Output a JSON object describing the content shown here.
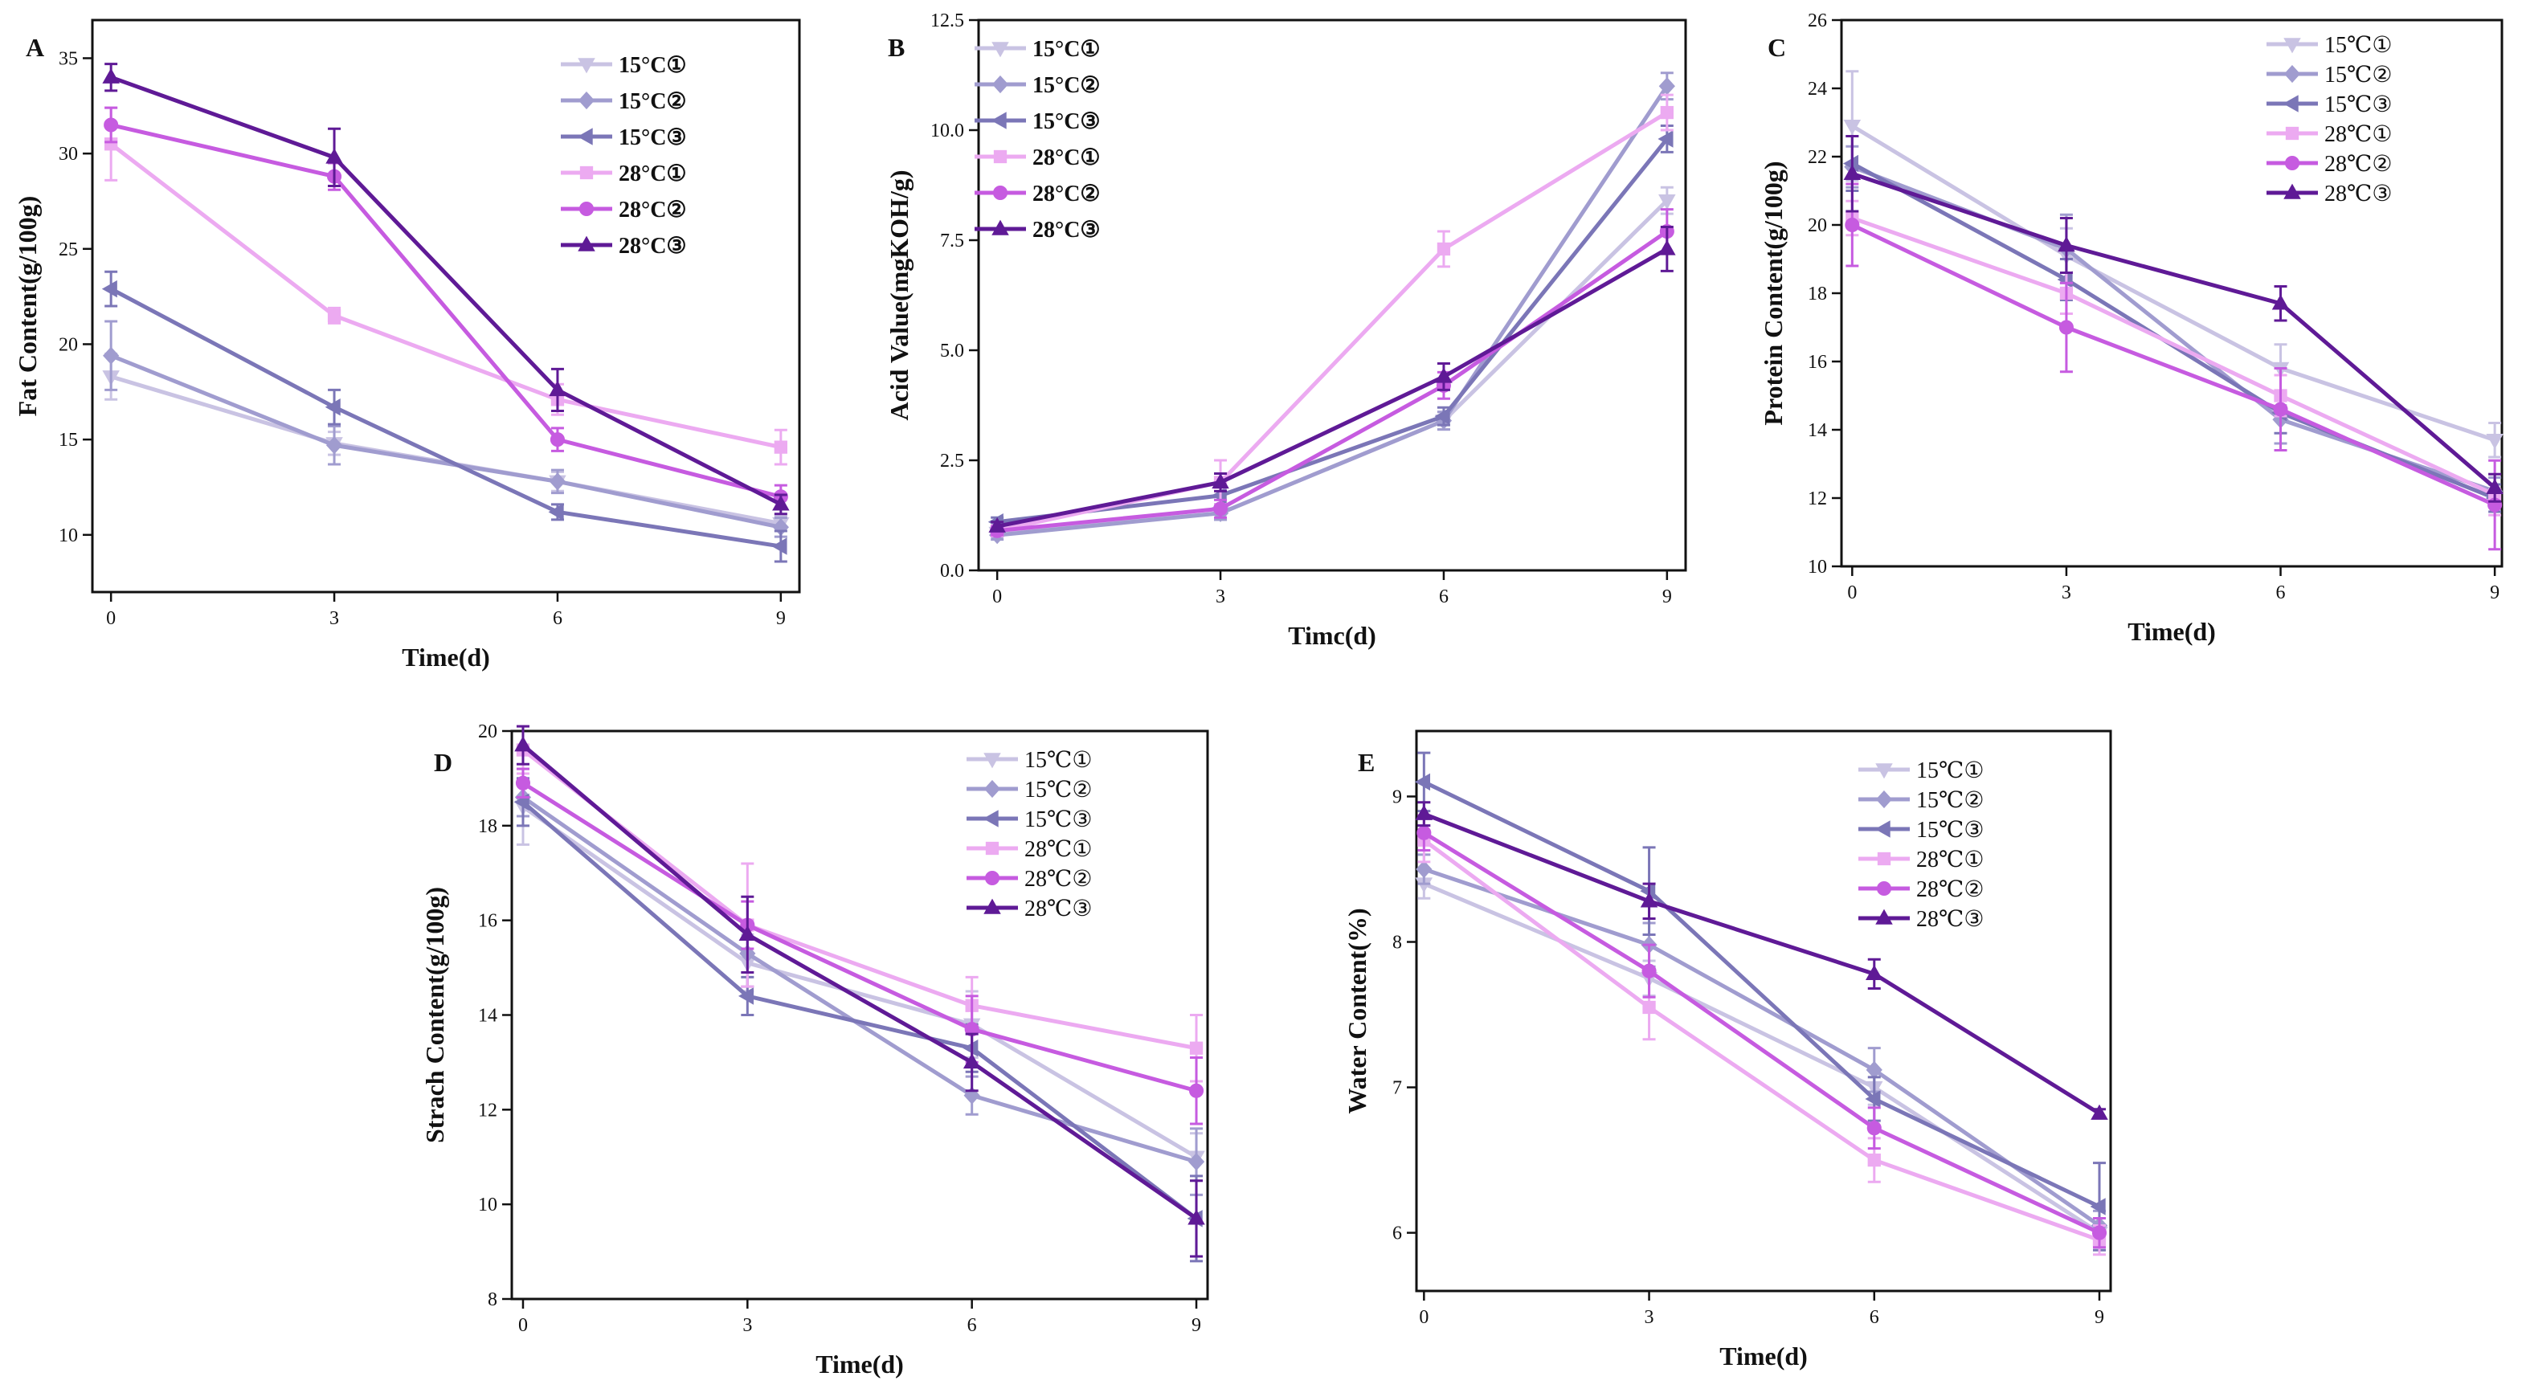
{
  "figure": {
    "colors": {
      "15°C①": "#c9c3e3",
      "15°C②": "#a09ccf",
      "15°C③": "#7b76b7",
      "28°C①": "#ecaaf1",
      "28°C②": "#c65be0",
      "28°C③": "#5f1a96"
    }
  },
  "chart_data": [
    {
      "id": "A",
      "panel_label": "A",
      "type": "line",
      "xlabel": "Time(d)",
      "ylabel": "Fat Content(g/100g)",
      "x": [
        0,
        3,
        6,
        9
      ],
      "xticks": [
        "0",
        "3",
        "6",
        "9"
      ],
      "xlim": [
        -0.25,
        9.25
      ],
      "ylim": [
        7,
        37
      ],
      "yticks": [
        "10",
        "15",
        "20",
        "25",
        "30",
        "35"
      ],
      "ytick_values": [
        10,
        15,
        20,
        25,
        30,
        35
      ],
      "legend_position": "top-right",
      "legend_bold": true,
      "series": [
        {
          "name": "15°C①",
          "marker": "triangle-down",
          "values": [
            18.3,
            14.8,
            12.8,
            10.6
          ],
          "errors": [
            1.2,
            0.6,
            0.5,
            0.4
          ]
        },
        {
          "name": "15°C②",
          "marker": "diamond",
          "values": [
            19.4,
            14.7,
            12.8,
            10.4
          ],
          "errors": [
            1.8,
            1.0,
            0.6,
            0.5
          ]
        },
        {
          "name": "15°C③",
          "marker": "triangle-left",
          "values": [
            22.9,
            16.7,
            11.2,
            9.4
          ],
          "errors": [
            0.9,
            0.9,
            0.4,
            0.8
          ]
        },
        {
          "name": "28°C①",
          "marker": "square",
          "values": [
            30.5,
            21.5,
            17.1,
            14.6
          ],
          "errors": [
            1.9,
            0.4,
            0.8,
            0.9
          ]
        },
        {
          "name": "28°C②",
          "marker": "circle",
          "values": [
            31.5,
            28.8,
            15.0,
            12.0
          ],
          "errors": [
            0.9,
            0.7,
            0.6,
            0.6
          ]
        },
        {
          "name": "28°C③",
          "marker": "triangle-up",
          "values": [
            34.0,
            29.8,
            17.6,
            11.6
          ],
          "errors": [
            0.7,
            1.5,
            1.1,
            0.5
          ]
        }
      ]
    },
    {
      "id": "B",
      "panel_label": "B",
      "type": "line",
      "xlabel": "Timc(d)",
      "ylabel": "Acid Value(mgKOH/g)",
      "x": [
        0,
        3,
        6,
        9
      ],
      "xticks": [
        "0",
        "3",
        "6",
        "9"
      ],
      "xlim": [
        -0.25,
        9.25
      ],
      "ylim": [
        0,
        12.5
      ],
      "yticks": [
        "0.0",
        "2.5",
        "5.0",
        "7.5",
        "10.0",
        "12.5"
      ],
      "ytick_values": [
        0,
        2.5,
        5,
        7.5,
        10,
        12.5
      ],
      "legend_position": "top-left",
      "legend_bold": true,
      "series": [
        {
          "name": "15°C①",
          "marker": "triangle-down",
          "values": [
            0.85,
            1.3,
            3.4,
            8.4
          ],
          "errors": [
            0.1,
            0.15,
            0.2,
            0.3
          ]
        },
        {
          "name": "15°C②",
          "marker": "diamond",
          "values": [
            0.8,
            1.3,
            3.4,
            11.0
          ],
          "errors": [
            0.1,
            0.15,
            0.2,
            0.3
          ]
        },
        {
          "name": "15°C③",
          "marker": "triangle-left",
          "values": [
            1.1,
            1.7,
            3.5,
            9.8
          ],
          "errors": [
            0.1,
            0.2,
            0.2,
            0.3
          ]
        },
        {
          "name": "28°C①",
          "marker": "square",
          "values": [
            0.9,
            2.0,
            7.3,
            10.4
          ],
          "errors": [
            0.1,
            0.5,
            0.4,
            0.4
          ]
        },
        {
          "name": "28°C②",
          "marker": "circle",
          "values": [
            0.9,
            1.4,
            4.2,
            7.7
          ],
          "errors": [
            0.1,
            0.2,
            0.3,
            0.5
          ]
        },
        {
          "name": "28°C③",
          "marker": "triangle-up",
          "values": [
            1.0,
            2.0,
            4.4,
            7.3
          ],
          "errors": [
            0.1,
            0.2,
            0.3,
            0.5
          ]
        }
      ]
    },
    {
      "id": "C",
      "panel_label": "C",
      "type": "line",
      "xlabel": "Time(d)",
      "ylabel": "Protein Content(g/100g)",
      "x": [
        0,
        3,
        6,
        9
      ],
      "xticks": [
        "0",
        "3",
        "6",
        "9"
      ],
      "xlim": [
        -0.15,
        9.1
      ],
      "ylim": [
        10,
        26
      ],
      "yticks": [
        "10",
        "12",
        "14",
        "16",
        "18",
        "20",
        "22",
        "24",
        "26"
      ],
      "ytick_values": [
        10,
        12,
        14,
        16,
        18,
        20,
        22,
        24,
        26
      ],
      "legend_position": "top-right",
      "legend_bold": false,
      "series": [
        {
          "name": "15℃①",
          "marker": "triangle-down",
          "values": [
            22.9,
            19.1,
            15.8,
            13.7
          ],
          "errors": [
            1.6,
            0.8,
            0.7,
            0.5
          ]
        },
        {
          "name": "15℃②",
          "marker": "diamond",
          "values": [
            21.7,
            19.3,
            14.3,
            12.2
          ],
          "errors": [
            0.6,
            1.0,
            0.7,
            0.4
          ]
        },
        {
          "name": "15℃③",
          "marker": "triangle-left",
          "values": [
            21.8,
            18.4,
            14.5,
            12.0
          ],
          "errors": [
            0.8,
            0.6,
            0.6,
            0.4
          ]
        },
        {
          "name": "28℃①",
          "marker": "square",
          "values": [
            20.2,
            18.0,
            15.0,
            12.1
          ],
          "errors": [
            0.5,
            0.6,
            0.6,
            0.6
          ]
        },
        {
          "name": "28℃②",
          "marker": "circle",
          "values": [
            20.0,
            17.0,
            14.6,
            11.8
          ],
          "errors": [
            1.2,
            1.3,
            1.2,
            1.3
          ]
        },
        {
          "name": "28℃③",
          "marker": "triangle-up",
          "values": [
            21.5,
            19.4,
            17.7,
            12.3
          ],
          "errors": [
            1.1,
            0.8,
            0.5,
            0.4
          ]
        }
      ]
    },
    {
      "id": "D",
      "panel_label": "D",
      "type": "line",
      "xlabel": "Time(d)",
      "ylabel": "Strach Content(g/100g)",
      "x": [
        0,
        3,
        6,
        9
      ],
      "xticks": [
        "0",
        "3",
        "6",
        "9"
      ],
      "xlim": [
        -0.15,
        9.15
      ],
      "ylim": [
        8,
        20
      ],
      "yticks": [
        "8",
        "10",
        "12",
        "14",
        "16",
        "18",
        "20"
      ],
      "ytick_values": [
        8,
        10,
        12,
        14,
        16,
        18,
        20
      ],
      "legend_position": "top-right",
      "legend_bold": false,
      "series": [
        {
          "name": "15℃①",
          "marker": "triangle-down",
          "values": [
            18.4,
            15.1,
            13.8,
            11.0
          ],
          "errors": [
            0.8,
            0.6,
            0.7,
            0.5
          ]
        },
        {
          "name": "15℃②",
          "marker": "diamond",
          "values": [
            18.6,
            15.3,
            12.3,
            10.9
          ],
          "errors": [
            0.4,
            0.7,
            0.4,
            0.7
          ]
        },
        {
          "name": "15℃③",
          "marker": "triangle-left",
          "values": [
            18.5,
            14.4,
            13.3,
            9.7
          ],
          "errors": [
            0.5,
            0.4,
            0.5,
            0.9
          ]
        },
        {
          "name": "28℃①",
          "marker": "square",
          "values": [
            19.6,
            15.9,
            14.2,
            13.3
          ],
          "errors": [
            0.5,
            1.3,
            0.6,
            0.7
          ]
        },
        {
          "name": "28℃②",
          "marker": "circle",
          "values": [
            18.9,
            15.9,
            13.7,
            12.4
          ],
          "errors": [
            0.3,
            0.5,
            0.7,
            0.7
          ]
        },
        {
          "name": "28℃③",
          "marker": "triangle-up",
          "values": [
            19.7,
            15.7,
            13.0,
            9.7
          ],
          "errors": [
            0.4,
            0.8,
            0.6,
            0.8
          ]
        }
      ]
    },
    {
      "id": "E",
      "panel_label": "E",
      "type": "line",
      "xlabel": "Time(d)",
      "ylabel": "Water Content(%)",
      "x": [
        0,
        3,
        6,
        9
      ],
      "xticks": [
        "0",
        "3",
        "6",
        "9"
      ],
      "xlim": [
        -0.1,
        9.15
      ],
      "ylim": [
        5.6,
        9.45
      ],
      "yticks": [
        "6",
        "7",
        "8",
        "9"
      ],
      "ytick_values": [
        6,
        7,
        8,
        9
      ],
      "legend_position": "top-right",
      "legend_bold": false,
      "series": [
        {
          "name": "15℃①",
          "marker": "triangle-down",
          "values": [
            8.4,
            7.75,
            7.0,
            6.0
          ],
          "errors": [
            0.1,
            0.12,
            0.12,
            0.1
          ]
        },
        {
          "name": "15℃②",
          "marker": "diamond",
          "values": [
            8.5,
            7.98,
            7.12,
            6.05
          ],
          "errors": [
            0.1,
            0.15,
            0.15,
            0.1
          ]
        },
        {
          "name": "15℃③",
          "marker": "triangle-left",
          "values": [
            9.1,
            8.35,
            6.92,
            6.18
          ],
          "errors": [
            0.2,
            0.3,
            0.15,
            0.3
          ]
        },
        {
          "name": "28℃①",
          "marker": "square",
          "values": [
            8.7,
            7.55,
            6.5,
            5.95
          ],
          "errors": [
            0.15,
            0.22,
            0.15,
            0.1
          ]
        },
        {
          "name": "28℃②",
          "marker": "circle",
          "values": [
            8.75,
            7.8,
            6.72,
            6.0
          ],
          "errors": [
            0.12,
            0.18,
            0.14,
            0.1
          ]
        },
        {
          "name": "28℃③",
          "marker": "triangle-up",
          "values": [
            8.88,
            8.28,
            7.78,
            6.82
          ],
          "errors": [
            0.08,
            0.12,
            0.1,
            0.03
          ]
        }
      ]
    }
  ]
}
